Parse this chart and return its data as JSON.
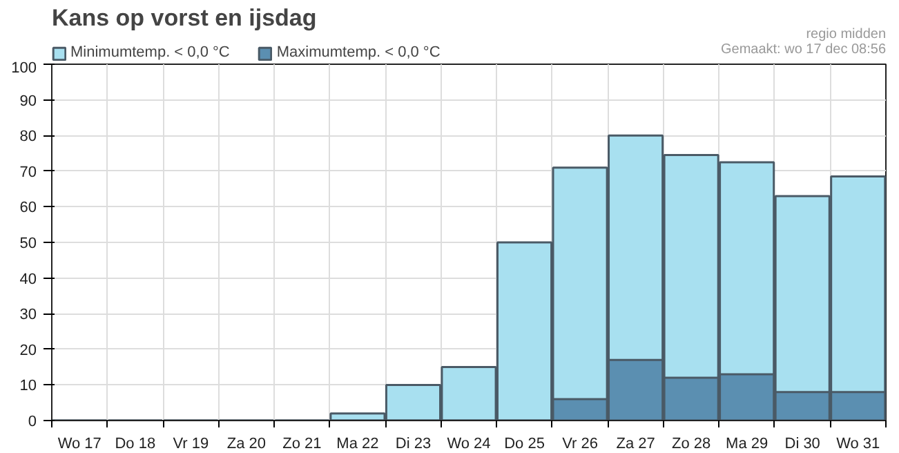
{
  "chart_data": {
    "type": "bar",
    "title": "Kans op vorst en ijsdag",
    "annotations": [
      "regio midden",
      "Gemaakt: wo 17 dec 08:56"
    ],
    "categories": [
      "Wo 17",
      "Do 18",
      "Vr 19",
      "Za 20",
      "Zo 21",
      "Ma 22",
      "Di 23",
      "Wo 24",
      "Do 25",
      "Vr 26",
      "Za 27",
      "Zo 28",
      "Ma 29",
      "Di 30",
      "Wo 31"
    ],
    "series": [
      {
        "name": "Minimumtemp. < 0,0 °C",
        "color": "#a8e0f0",
        "values": [
          0,
          0,
          0,
          0,
          0,
          2,
          10,
          15,
          50,
          71,
          80,
          74.5,
          72.5,
          63,
          68.5
        ]
      },
      {
        "name": "Maximumtemp. < 0,0 °C",
        "color": "#5b8fb1",
        "values": [
          0,
          0,
          0,
          0,
          0,
          0,
          0,
          0,
          0,
          6,
          17,
          12,
          13,
          8,
          8
        ]
      }
    ],
    "ylim": [
      0,
      100
    ],
    "yticks": [
      0,
      10,
      20,
      30,
      40,
      50,
      60,
      70,
      80,
      90,
      100
    ],
    "grid": true,
    "legend": "top left"
  }
}
